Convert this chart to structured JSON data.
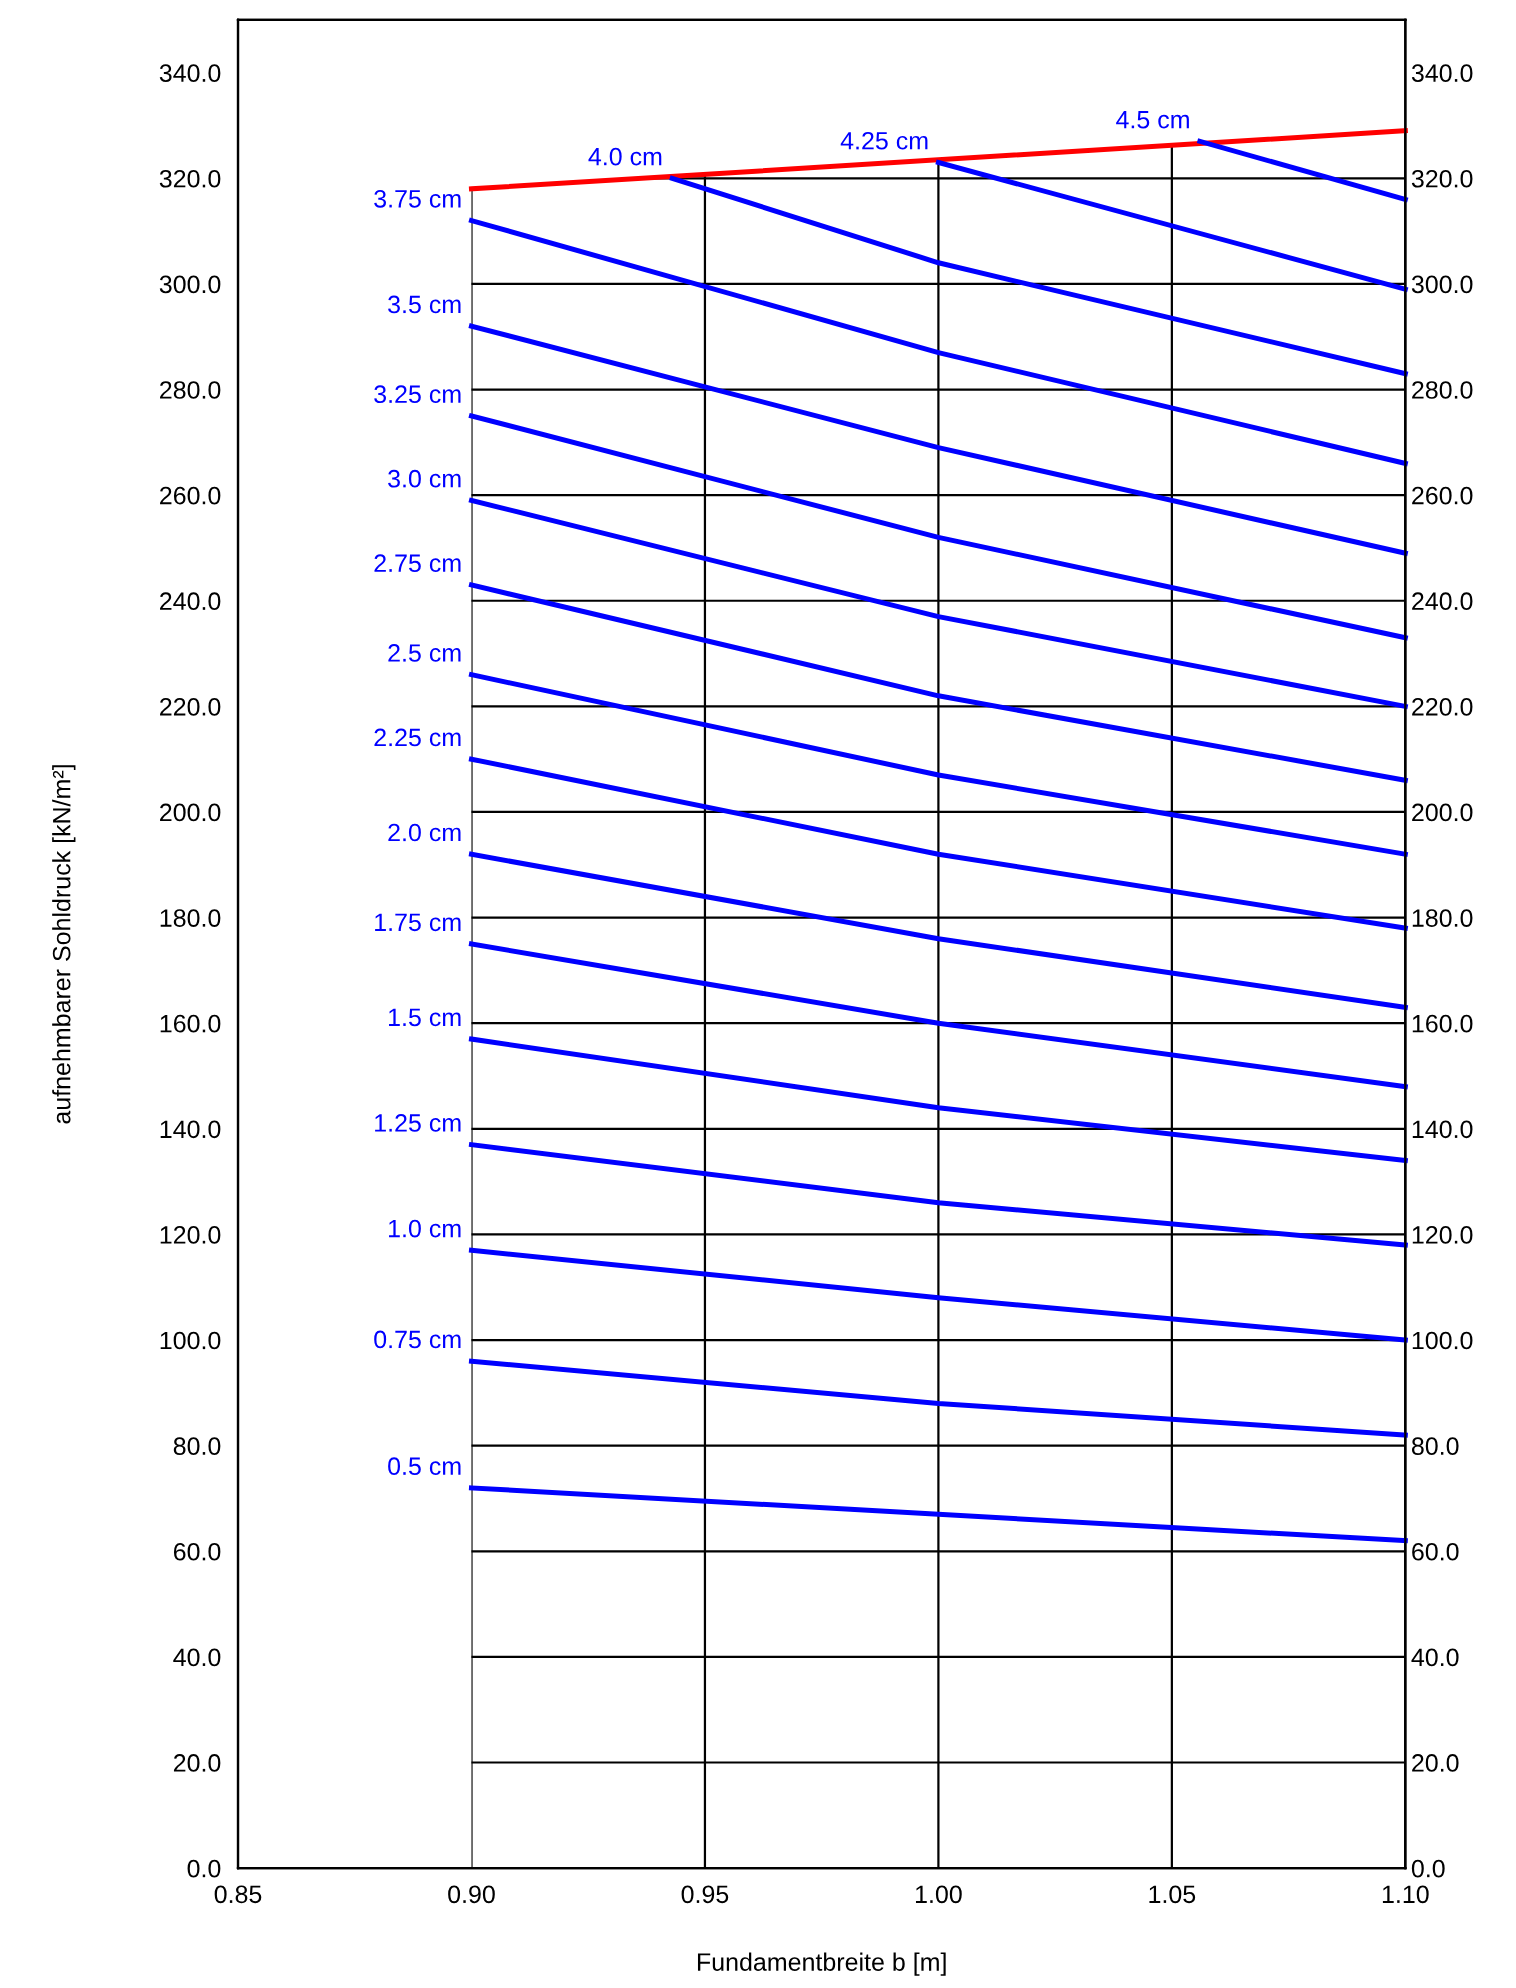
{
  "chart_data": {
    "type": "line",
    "xlabel": "Fundamentbreite b [m]",
    "ylabel": "aufnehmbarer Sohldruck [kN/m²]",
    "xlim": [
      0.85,
      1.1
    ],
    "xticks": [
      {
        "value": 0.85,
        "label": "0.85"
      },
      {
        "value": 0.9,
        "label": "0.90"
      },
      {
        "value": 0.95,
        "label": "0.95"
      },
      {
        "value": 1.0,
        "label": "1.00"
      },
      {
        "value": 1.05,
        "label": "1.05"
      },
      {
        "value": 1.1,
        "label": "1.10"
      }
    ],
    "ylim": [
      0,
      350
    ],
    "yticks": [
      {
        "value": 0,
        "label": "0.0"
      },
      {
        "value": 20,
        "label": "20.0"
      },
      {
        "value": 40,
        "label": "40.0"
      },
      {
        "value": 60,
        "label": "60.0"
      },
      {
        "value": 80,
        "label": "80.0"
      },
      {
        "value": 100,
        "label": "100.0"
      },
      {
        "value": 120,
        "label": "120.0"
      },
      {
        "value": 140,
        "label": "140.0"
      },
      {
        "value": 160,
        "label": "160.0"
      },
      {
        "value": 180,
        "label": "180.0"
      },
      {
        "value": 200,
        "label": "200.0"
      },
      {
        "value": 220,
        "label": "220.0"
      },
      {
        "value": 240,
        "label": "240.0"
      },
      {
        "value": 260,
        "label": "260.0"
      },
      {
        "value": 280,
        "label": "280.0"
      },
      {
        "value": 300,
        "label": "300.0"
      },
      {
        "value": 320,
        "label": "320.0"
      },
      {
        "value": 340,
        "label": "340.0"
      }
    ],
    "y2lim": [
      0,
      350
    ],
    "y2ticks": [
      {
        "value": 0,
        "label": "0.0"
      },
      {
        "value": 20,
        "label": "20.0"
      },
      {
        "value": 40,
        "label": "40.0"
      },
      {
        "value": 60,
        "label": "60.0"
      },
      {
        "value": 80,
        "label": "80.0"
      },
      {
        "value": 100,
        "label": "100.0"
      },
      {
        "value": 120,
        "label": "120.0"
      },
      {
        "value": 140,
        "label": "140.0"
      },
      {
        "value": 160,
        "label": "160.0"
      },
      {
        "value": 180,
        "label": "180.0"
      },
      {
        "value": 200,
        "label": "200.0"
      },
      {
        "value": 220,
        "label": "220.0"
      },
      {
        "value": 240,
        "label": "240.0"
      },
      {
        "value": 260,
        "label": "260.0"
      },
      {
        "value": 280,
        "label": "280.0"
      },
      {
        "value": 300,
        "label": "300.0"
      },
      {
        "value": 320,
        "label": "320.0"
      },
      {
        "value": 340,
        "label": "340.0"
      }
    ],
    "grid": true,
    "legend": false,
    "marker": "none",
    "line_style": "solid",
    "series": [
      {
        "color": "#ff0000",
        "x": [
          0.9,
          1.1
        ],
        "values": [
          318,
          329
        ]
      },
      {
        "name": "0.5 cm",
        "color": "#0000ff",
        "x": [
          0.9,
          1.0,
          1.1
        ],
        "values": [
          72,
          67,
          62
        ]
      },
      {
        "name": "0.75 cm",
        "color": "#0000ff",
        "x": [
          0.9,
          1.0,
          1.1
        ],
        "values": [
          96,
          88,
          82
        ]
      },
      {
        "name": "1.0 cm",
        "color": "#0000ff",
        "x": [
          0.9,
          1.0,
          1.1
        ],
        "values": [
          117,
          108,
          100
        ]
      },
      {
        "name": "1.25 cm",
        "color": "#0000ff",
        "x": [
          0.9,
          1.0,
          1.1
        ],
        "values": [
          137,
          126,
          118
        ]
      },
      {
        "name": "1.5 cm",
        "color": "#0000ff",
        "x": [
          0.9,
          1.0,
          1.1
        ],
        "values": [
          157,
          144,
          134
        ]
      },
      {
        "name": "1.75 cm",
        "color": "#0000ff",
        "x": [
          0.9,
          1.0,
          1.1
        ],
        "values": [
          175,
          160,
          148
        ]
      },
      {
        "name": "2.0 cm",
        "color": "#0000ff",
        "x": [
          0.9,
          1.0,
          1.1
        ],
        "values": [
          192,
          176,
          163
        ]
      },
      {
        "name": "2.25 cm",
        "color": "#0000ff",
        "x": [
          0.9,
          1.0,
          1.1
        ],
        "values": [
          210,
          192,
          178
        ]
      },
      {
        "name": "2.5 cm",
        "color": "#0000ff",
        "x": [
          0.9,
          1.0,
          1.1
        ],
        "values": [
          226,
          207,
          192
        ]
      },
      {
        "name": "2.75 cm",
        "color": "#0000ff",
        "x": [
          0.9,
          1.0,
          1.1
        ],
        "values": [
          243,
          222,
          206
        ]
      },
      {
        "name": "3.0 cm",
        "color": "#0000ff",
        "x": [
          0.9,
          1.0,
          1.1
        ],
        "values": [
          259,
          237,
          220
        ]
      },
      {
        "name": "3.25 cm",
        "color": "#0000ff",
        "x": [
          0.9,
          1.0,
          1.1
        ],
        "values": [
          275,
          252,
          233
        ]
      },
      {
        "name": "3.5 cm",
        "color": "#0000ff",
        "x": [
          0.9,
          1.0,
          1.1
        ],
        "values": [
          292,
          269,
          249
        ]
      },
      {
        "name": "3.75 cm",
        "color": "#0000ff",
        "x": [
          0.9,
          1.0,
          1.1
        ],
        "values": [
          312,
          287,
          266
        ]
      },
      {
        "name": "4.0 cm",
        "color": "#0000ff",
        "x": [
          0.943,
          1.0,
          1.1
        ],
        "values": [
          320,
          304,
          283
        ]
      },
      {
        "name": "4.25 cm",
        "color": "#0000ff",
        "x": [
          1.0,
          1.1
        ],
        "values": [
          323,
          299
        ]
      },
      {
        "name": "4.5 cm",
        "color": "#0000ff",
        "x": [
          1.056,
          1.1
        ],
        "values": [
          327,
          316
        ]
      }
    ]
  }
}
